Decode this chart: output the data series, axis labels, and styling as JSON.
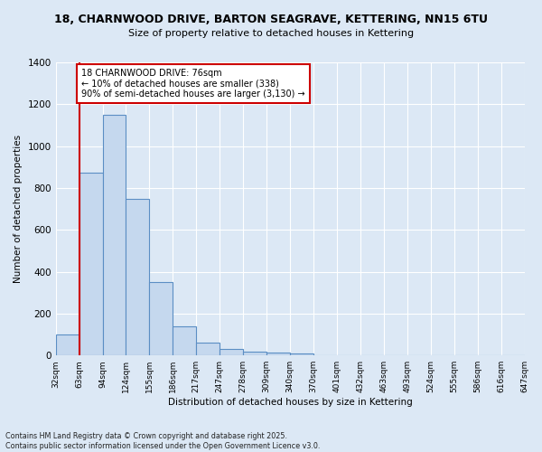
{
  "title_line1": "18, CHARNWOOD DRIVE, BARTON SEAGRAVE, KETTERING, NN15 6TU",
  "title_line2": "Size of property relative to detached houses in Kettering",
  "xlabel": "Distribution of detached houses by size in Kettering",
  "ylabel": "Number of detached properties",
  "bar_values": [
    100,
    875,
    1150,
    750,
    350,
    140,
    60,
    30,
    20,
    15,
    10,
    0,
    0,
    0,
    0,
    0,
    0,
    0,
    0,
    0
  ],
  "categories": [
    "32sqm",
    "63sqm",
    "94sqm",
    "124sqm",
    "155sqm",
    "186sqm",
    "217sqm",
    "247sqm",
    "278sqm",
    "309sqm",
    "340sqm",
    "370sqm",
    "401sqm",
    "432sqm",
    "463sqm",
    "493sqm",
    "524sqm",
    "555sqm",
    "586sqm",
    "616sqm",
    "647sqm"
  ],
  "bar_color": "#c5d8ee",
  "bar_edge_color": "#5b8ec4",
  "background_color": "#dce8f5",
  "grid_color": "#ffffff",
  "vline_x": 1,
  "vline_color": "#cc0000",
  "annotation_box_text": "18 CHARNWOOD DRIVE: 76sqm\n← 10% of detached houses are smaller (338)\n90% of semi-detached houses are larger (3,130) →",
  "annotation_box_color": "#ffffff",
  "annotation_box_edge_color": "#cc0000",
  "ylim": [
    0,
    1400
  ],
  "yticks": [
    0,
    200,
    400,
    600,
    800,
    1000,
    1200,
    1400
  ],
  "footnote": "Contains HM Land Registry data © Crown copyright and database right 2025.\nContains public sector information licensed under the Open Government Licence v3.0."
}
